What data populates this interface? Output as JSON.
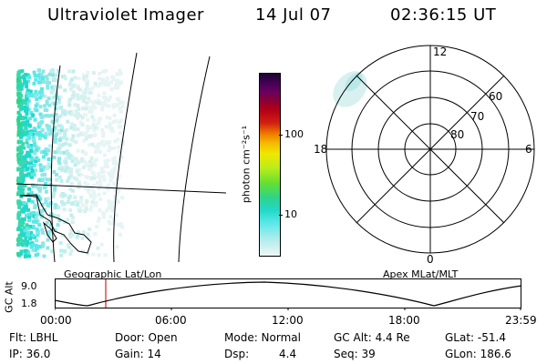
{
  "header": {
    "title": "Ultraviolet Imager",
    "date": "14 Jul 07",
    "time": "02:36:15 UT"
  },
  "colorbar": {
    "unit_label": "photon cm⁻²s⁻¹",
    "ticks": [
      "100",
      "10"
    ]
  },
  "polar_plot": {
    "lat_labels": [
      "60",
      "70",
      "80"
    ],
    "mlt_labels": [
      "12",
      "18",
      "6",
      "0"
    ]
  },
  "timeline": {
    "axis_label": "GC Alt",
    "y_ticks": [
      "9.0",
      "1.8"
    ],
    "x_ticks": [
      "00:00",
      "06:00",
      "12:00",
      "18:00",
      "23:59"
    ],
    "left_caption": "Geographic Lat/Lon",
    "right_caption": "Apex MLat/MLT"
  },
  "status": {
    "flt": "Flt: LBHL",
    "door": "Door: Open",
    "mode": "Mode: Normal",
    "gc_alt": "GC Alt: 4.4 Re",
    "glat": "GLat: -51.4",
    "ip": "IP: 36.0",
    "gain": "Gain: 14",
    "dsp_label": "Dsp:",
    "dsp_value": "4.4",
    "seq": "Seq: 39",
    "glon": "GLon: 186.6"
  }
}
